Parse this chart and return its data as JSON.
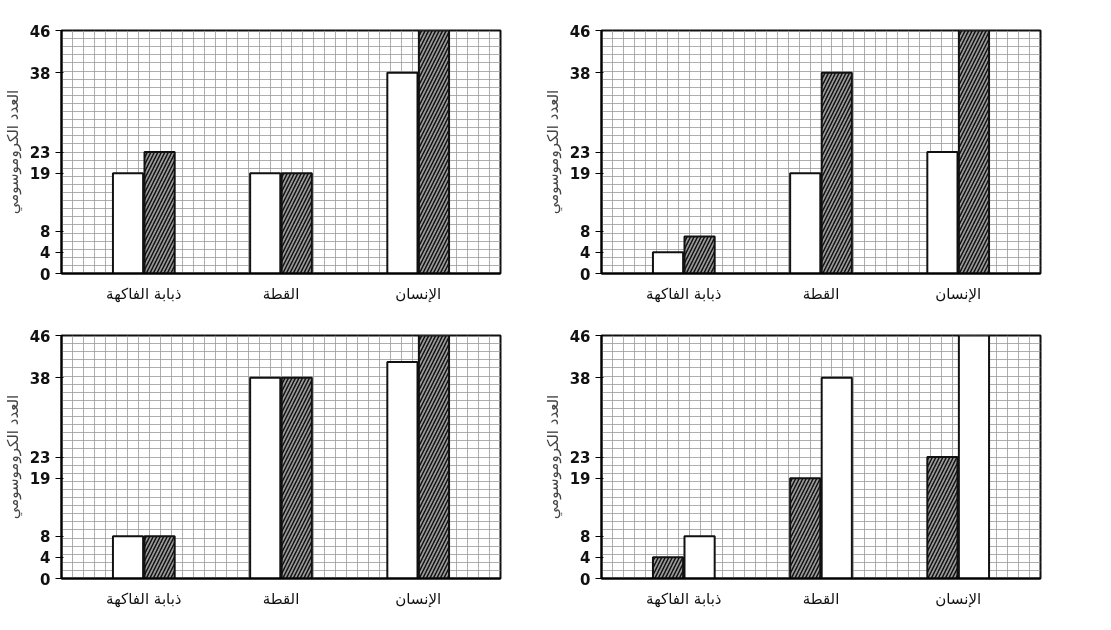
{
  "chart_data": [
    {
      "type": "bar",
      "ylabel": "العدد الكروموسومي",
      "categories": [
        "ذبابة الفاكهة",
        "القطة",
        "الإنسان"
      ],
      "series": [
        {
          "color": "#ffffff",
          "values": [
            19,
            19,
            38
          ]
        },
        {
          "color": "#9a9a9a",
          "values": [
            23,
            19,
            46
          ]
        }
      ],
      "ylim": [
        0,
        46
      ],
      "yticks": [
        0,
        4,
        8,
        19,
        23,
        38,
        46
      ],
      "grid": true
    },
    {
      "type": "bar",
      "ylabel": "العدد الكروموسومي",
      "categories": [
        "ذبابة الفاكهة",
        "القطة",
        "الإنسان"
      ],
      "series": [
        {
          "color": "#ffffff",
          "values": [
            4,
            19,
            23
          ]
        },
        {
          "color": "#9a9a9a",
          "values": [
            7,
            38,
            46
          ]
        }
      ],
      "ylim": [
        0,
        46
      ],
      "yticks": [
        0,
        4,
        8,
        19,
        23,
        38,
        46
      ],
      "grid": true
    },
    {
      "type": "bar",
      "ylabel": "العدد الكروموسومي",
      "categories": [
        "ذبابة الفاكهة",
        "القطة",
        "الإنسان"
      ],
      "series": [
        {
          "color": "#ffffff",
          "values": [
            8,
            38,
            41
          ]
        },
        {
          "color": "#9a9a9a",
          "values": [
            8,
            38,
            46
          ]
        }
      ],
      "ylim": [
        0,
        46
      ],
      "yticks": [
        0,
        4,
        8,
        19,
        23,
        38,
        46
      ],
      "grid": true
    },
    {
      "type": "bar",
      "ylabel": "العدد الكروموسومي",
      "categories": [
        "ذبابة الفاكهة",
        "القطة",
        "الإنسان"
      ],
      "series": [
        {
          "color": "#9a9a9a",
          "values": [
            4,
            19,
            23
          ]
        },
        {
          "color": "#ffffff",
          "values": [
            8,
            38,
            46
          ]
        }
      ],
      "ylim": [
        0,
        46
      ],
      "yticks": [
        0,
        4,
        8,
        19,
        23,
        38,
        46
      ],
      "grid": true
    }
  ]
}
